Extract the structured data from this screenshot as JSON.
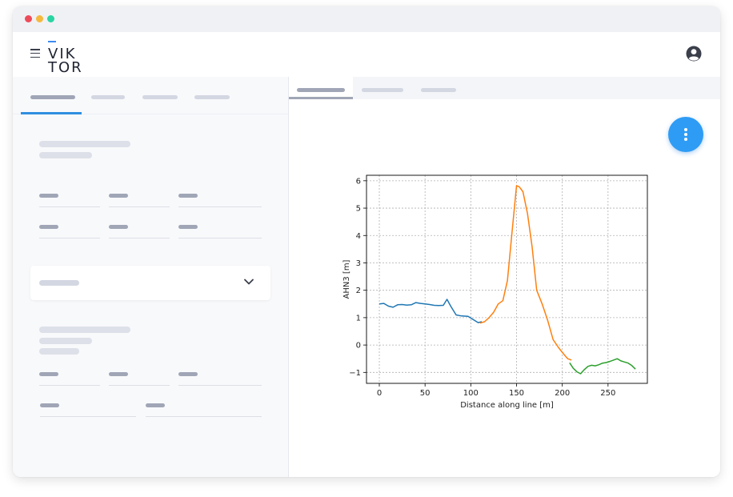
{
  "app": {
    "logo_line1": "VIK",
    "logo_line2": "TOR",
    "colors": {
      "accent": "#2f8fe0",
      "fab": "#2e9cf5",
      "placeholder": "#d3d7e2",
      "placeholder_dark": "#a0a6b6"
    }
  },
  "window_controls": [
    "close-dot",
    "minimize-dot",
    "maximize-dot"
  ],
  "icons": {
    "menu": "hamburger-menu-icon",
    "user": "user-circle-icon",
    "expand": "chevron-down-icon",
    "more": "more-vertical-icon"
  },
  "chart_data": {
    "type": "line",
    "xlabel": "Distance along line [m]",
    "ylabel": "AHN3 [m]",
    "xlim": [
      -14,
      293
    ],
    "ylim": [
      -1.4,
      6.2
    ],
    "xticks": [
      0,
      50,
      100,
      150,
      200,
      250
    ],
    "yticks": [
      -1,
      0,
      1,
      2,
      3,
      4,
      5,
      6
    ],
    "grid": true,
    "series": [
      {
        "color": "#1f77b4",
        "x": [
          0,
          5,
          10,
          15,
          20,
          25,
          30,
          35,
          40,
          45,
          50,
          55,
          60,
          65,
          70,
          74,
          78,
          84,
          90,
          97,
          104,
          108,
          112
        ],
        "y": [
          1.5,
          1.52,
          1.42,
          1.38,
          1.47,
          1.48,
          1.46,
          1.47,
          1.55,
          1.52,
          1.5,
          1.48,
          1.45,
          1.44,
          1.45,
          1.67,
          1.42,
          1.1,
          1.06,
          1.05,
          0.9,
          0.82,
          0.85
        ]
      },
      {
        "color": "#ff7f0e",
        "x": [
          110,
          115,
          120,
          125,
          130,
          135,
          140,
          145,
          150,
          153,
          157,
          162,
          167,
          172,
          178,
          184,
          190,
          196,
          202,
          206,
          210
        ],
        "y": [
          0.8,
          0.85,
          1.0,
          1.2,
          1.5,
          1.62,
          2.35,
          4.1,
          5.82,
          5.78,
          5.6,
          4.8,
          3.6,
          2.0,
          1.5,
          0.9,
          0.2,
          -0.1,
          -0.35,
          -0.5,
          -0.55
        ]
      },
      {
        "color": "#2ca02c",
        "x": [
          208,
          212,
          216,
          220,
          224,
          228,
          232,
          236,
          240,
          244,
          248,
          252,
          256,
          260,
          264,
          268,
          272,
          276,
          280
        ],
        "y": [
          -0.65,
          -0.85,
          -0.98,
          -1.05,
          -0.9,
          -0.78,
          -0.74,
          -0.76,
          -0.72,
          -0.66,
          -0.64,
          -0.6,
          -0.55,
          -0.5,
          -0.58,
          -0.62,
          -0.66,
          -0.75,
          -0.88
        ]
      }
    ]
  }
}
